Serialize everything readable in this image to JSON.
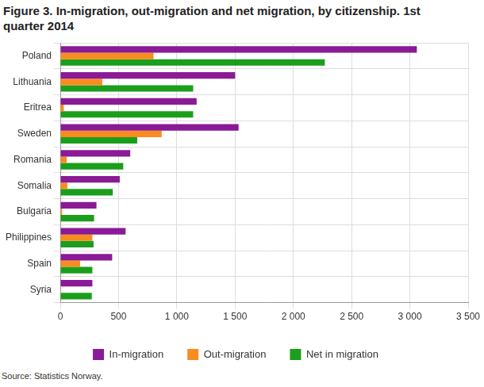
{
  "chart_data": {
    "type": "bar",
    "orientation": "horizontal",
    "title": "Figure 3. In-migration, out-migration and net migration, by citizenship. 1st quarter 2014",
    "source": "Source: Statistics Norway.",
    "categories": [
      "Poland",
      "Lithuania",
      "Eritrea",
      "Sweden",
      "Romania",
      "Somalia",
      "Bulgaria",
      "Philippines",
      "Spain",
      "Syria"
    ],
    "series": [
      {
        "name": "In-migration",
        "color": "#8a1a96",
        "values": [
          3060,
          1500,
          1170,
          1530,
          600,
          510,
          310,
          560,
          445,
          275
        ]
      },
      {
        "name": "Out-migration",
        "color": "#f98c1f",
        "values": [
          800,
          360,
          30,
          870,
          55,
          60,
          15,
          275,
          170,
          5
        ]
      },
      {
        "name": "Net in migration",
        "color": "#1b9e1b",
        "values": [
          2270,
          1140,
          1140,
          660,
          540,
          450,
          290,
          285,
          275,
          270
        ]
      }
    ],
    "xlim": [
      0,
      3500
    ],
    "xticks": [
      0,
      500,
      {
        "value": 1000,
        "label": "1 000"
      },
      {
        "value": 1500,
        "label": "1 500"
      },
      {
        "value": 2000,
        "label": "2 000"
      },
      {
        "value": 2500,
        "label": "2 500"
      },
      {
        "value": 3000,
        "label": "3 000"
      },
      {
        "value": 3500,
        "label": "3 500"
      }
    ],
    "grid": true,
    "legend": "bottom"
  }
}
